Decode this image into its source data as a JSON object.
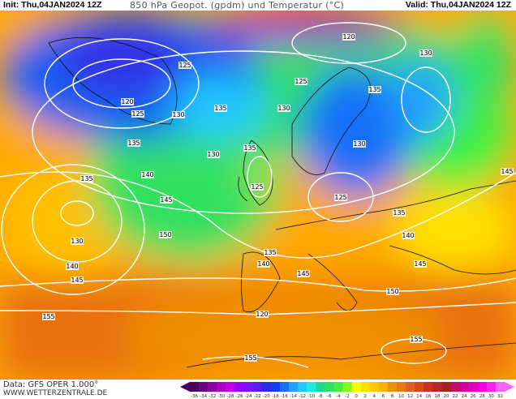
{
  "header": {
    "init": "Init: Thu,04JAN2024 12Z",
    "title": "850 hPa Geopot. (gpdm) und Temperatur (°C)",
    "valid": "Valid: Thu,04JAN2024 12Z"
  },
  "footer": {
    "data_source": "Data: GFS OPER 1.000°",
    "website": "WWW.WETTERZENTRALE.DE"
  },
  "legend": {
    "unit": "°C",
    "ticks": [
      "-36",
      "-34",
      "-32",
      "-30",
      "-28",
      "-26",
      "-24",
      "-22",
      "-20",
      "-18",
      "-16",
      "-14",
      "-12",
      "-10",
      "-8",
      "-6",
      "-4",
      "-2",
      "0",
      "2",
      "4",
      "6",
      "8",
      "10",
      "12",
      "14",
      "16",
      "18",
      "20",
      "22",
      "24",
      "26",
      "28",
      "30",
      "32"
    ],
    "colors": [
      "#4b0060",
      "#6a007f",
      "#8a00a0",
      "#a800c8",
      "#c000e0",
      "#9a00ff",
      "#7a10ff",
      "#5520f0",
      "#2a2ae8",
      "#1040f0",
      "#1870f8",
      "#20a0ff",
      "#20c8ff",
      "#20e8e0",
      "#20d890",
      "#30e060",
      "#40f040",
      "#80ff20",
      "#ffff00",
      "#ffe000",
      "#ffc800",
      "#ffb000",
      "#f09000",
      "#e87a10",
      "#e06020",
      "#d84818",
      "#c83020",
      "#b82828",
      "#a82020",
      "#c01060",
      "#d000a0",
      "#e000c0",
      "#f000e0",
      "#ff20f0",
      "#ff60ff"
    ]
  },
  "map": {
    "contour_labels": [
      {
        "text": "120"
      },
      {
        "text": "130"
      },
      {
        "text": "125"
      },
      {
        "text": "125"
      },
      {
        "text": "135"
      },
      {
        "text": "120"
      },
      {
        "text": "125"
      },
      {
        "text": "130"
      },
      {
        "text": "135"
      },
      {
        "text": "130"
      },
      {
        "text": "135"
      },
      {
        "text": "135"
      },
      {
        "text": "130"
      },
      {
        "text": "130"
      },
      {
        "text": "135"
      },
      {
        "text": "140"
      },
      {
        "text": "125"
      },
      {
        "text": "125"
      },
      {
        "text": "145"
      },
      {
        "text": "135"
      },
      {
        "text": "130"
      },
      {
        "text": "150"
      },
      {
        "text": "140"
      },
      {
        "text": "135"
      },
      {
        "text": "140"
      },
      {
        "text": "140"
      },
      {
        "text": "145"
      },
      {
        "text": "145"
      },
      {
        "text": "145"
      },
      {
        "text": "150"
      },
      {
        "text": "155"
      },
      {
        "text": "120"
      },
      {
        "text": "155"
      },
      {
        "text": "155"
      },
      {
        "text": "145"
      }
    ]
  }
}
